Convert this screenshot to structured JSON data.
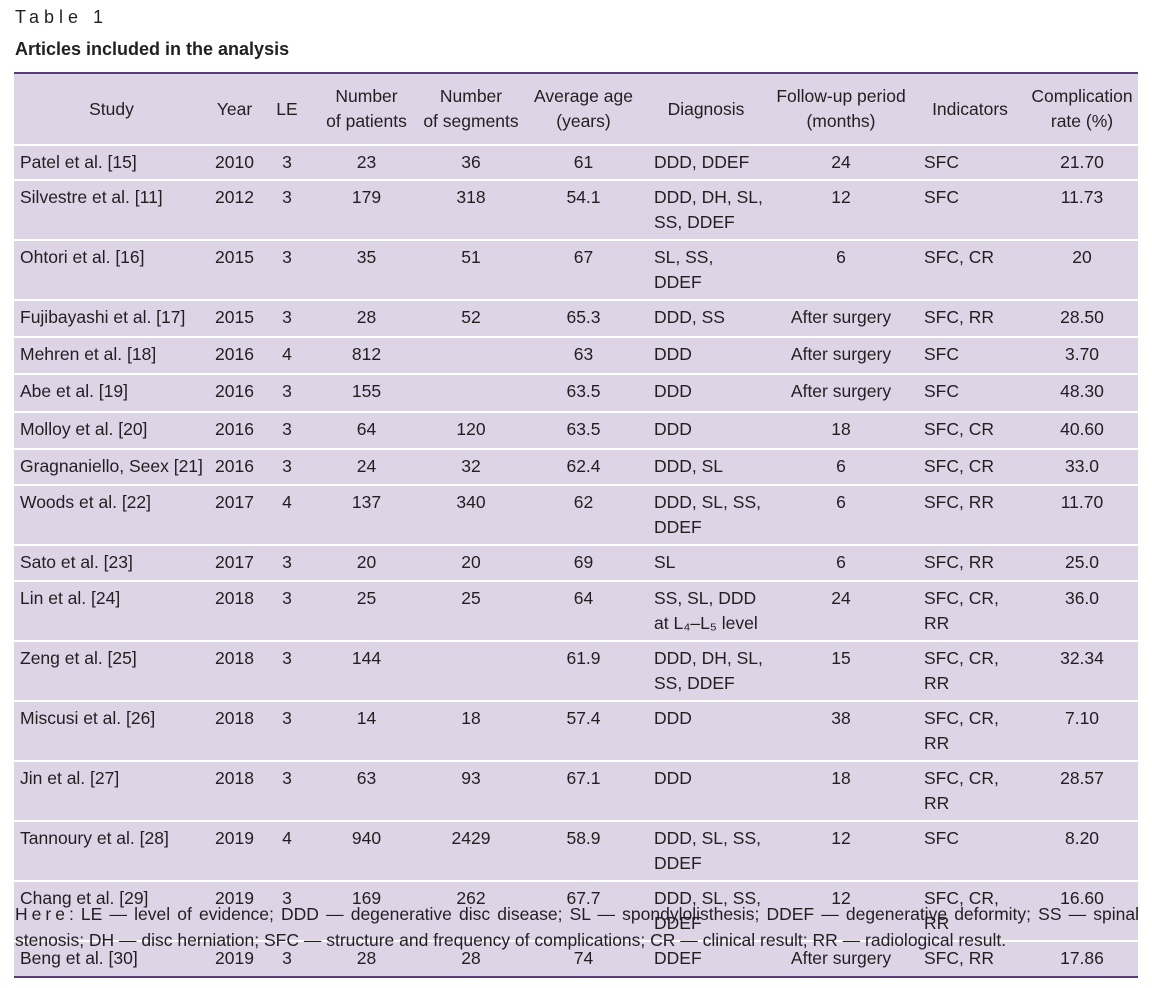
{
  "caption": {
    "label": "Table 1",
    "title": "Articles included in the analysis"
  },
  "table": {
    "headers": [
      "Study",
      "Year",
      "LE",
      "Number\nof patients",
      "Number\nof segments",
      "Average age\n(years)",
      "Diagnosis",
      "Follow-up period\n(months)",
      "Indicators",
      "Complication\nrate (%)"
    ],
    "rows": [
      [
        "Patel et al. [15]",
        "2010",
        "3",
        "23",
        "36",
        "61",
        "DDD, DDEF",
        "24",
        "SFC",
        "21.70"
      ],
      [
        "Silvestre et al. [11]",
        "2012",
        "3",
        "179",
        "318",
        "54.1",
        "DDD, DH, SL,\nSS, DDEF",
        "12",
        "SFC",
        "11.73"
      ],
      [
        "Ohtori et al. [16]",
        "2015",
        "3",
        "35",
        "51",
        "67",
        "SL, SS, DDEF",
        "6",
        "SFC, CR",
        "20"
      ],
      [
        "Fujibayashi et al. [17]",
        "2015",
        "3",
        "28",
        "52",
        "65.3",
        "DDD, SS",
        "After surgery",
        "SFC, RR",
        "28.50"
      ],
      [
        "Mehren et al. [18]",
        "2016",
        "4",
        "812",
        "",
        "63",
        "DDD",
        "After surgery",
        "SFC",
        "3.70"
      ],
      [
        "Abe et al. [19]",
        "2016",
        "3",
        "155",
        "",
        "63.5",
        "DDD",
        "After surgery",
        "SFC",
        "48.30"
      ],
      [
        "Molloy et al. [20]",
        "2016",
        "3",
        "64",
        "120",
        "63.5",
        "DDD",
        "18",
        "SFC, CR",
        "40.60"
      ],
      [
        "Gragnaniello, Seex [21]",
        "2016",
        "3",
        "24",
        "32",
        "62.4",
        "DDD, SL",
        "6",
        "SFC, CR",
        "33.0"
      ],
      [
        "Woods et al. [22]",
        "2017",
        "4",
        "137",
        "340",
        "62",
        "DDD, SL, SS,\nDDEF",
        "6",
        "SFC, RR",
        "11.70"
      ],
      [
        "Sato et al. [23]",
        "2017",
        "3",
        "20",
        "20",
        "69",
        "SL",
        "6",
        "SFC, RR",
        "25.0"
      ],
      [
        "Lin et al. [24]",
        "2018",
        "3",
        "25",
        "25",
        "64",
        "SS, SL, DDD\nat L₄–L₅ level",
        "24",
        "SFC, CR, RR",
        "36.0"
      ],
      [
        "Zeng et al. [25]",
        "2018",
        "3",
        "144",
        "",
        "61.9",
        "DDD, DH, SL,\nSS, DDEF",
        "15",
        "SFC, CR, RR",
        "32.34"
      ],
      [
        "Miscusi et al. [26]",
        "2018",
        "3",
        "14",
        "18",
        "57.4",
        "DDD",
        "38",
        "SFC, CR, RR",
        "7.10"
      ],
      [
        "Jin et al. [27]",
        "2018",
        "3",
        "63",
        "93",
        "67.1",
        "DDD",
        "18",
        "SFC, CR, RR",
        "28.57"
      ],
      [
        "Tannoury et al. [28]",
        "2019",
        "4",
        "940",
        "2429",
        "58.9",
        "DDD, SL, SS,\nDDEF",
        "12",
        "SFC",
        "8.20"
      ],
      [
        "Chang et al. [29]",
        "2019",
        "3",
        "169",
        "262",
        "67.7",
        "DDD, SL, SS,\nDDEF",
        "12",
        "SFC, CR, RR",
        "16.60"
      ],
      [
        "Beng et al. [30]",
        "2019",
        "3",
        "28",
        "28",
        "74",
        "DDEF",
        "After surgery",
        "SFC, RR",
        "17.86"
      ]
    ]
  },
  "footnote": {
    "lead": "Here",
    "text": ": LE — level of evidence; DDD — degenerative disc disease; SL — spondylolisthesis; DDEF — degenerative deformity; SS — spinal stenosis; DH — disc herniation; SFC — structure and frequency of complications; CR — clinical result; RR — radiological result."
  }
}
